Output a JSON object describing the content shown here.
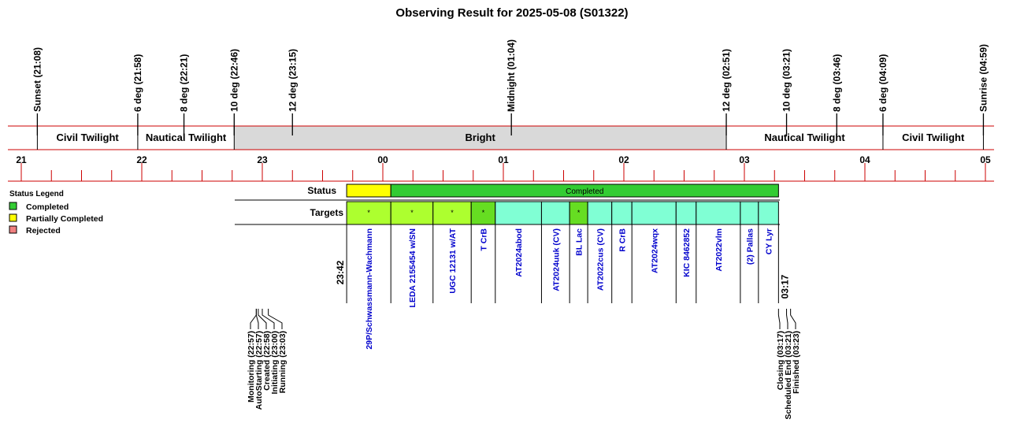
{
  "title": "Observing Result for 2025-05-08 (S01322)",
  "colors": {
    "axis_line": "#cc0000",
    "bright_band": "#d9d9d9",
    "completed": "#33cc33",
    "partial": "#ffff00",
    "rejected": "#f08080",
    "target_mint": "#80ffd4",
    "target_lime": "#adff2f",
    "target_green": "#66dd22",
    "target_label": "#0000cc"
  },
  "events_top": [
    {
      "label": "Sunset (21:08)",
      "time": "21:08"
    },
    {
      "label": "6 deg (21:58)",
      "time": "21:58"
    },
    {
      "label": "8 deg (22:21)",
      "time": "22:21"
    },
    {
      "label": "10 deg (22:46)",
      "time": "22:46"
    },
    {
      "label": "12 deg (23:15)",
      "time": "23:15"
    },
    {
      "label": "Midnight (01:04)",
      "time": "01:04"
    },
    {
      "label": "12 deg (02:51)",
      "time": "02:51"
    },
    {
      "label": "10 deg (03:21)",
      "time": "03:21"
    },
    {
      "label": "8 deg (03:46)",
      "time": "03:46"
    },
    {
      "label": "6 deg (04:09)",
      "time": "04:09"
    },
    {
      "label": "Sunrise (04:59)",
      "time": "04:59"
    }
  ],
  "bands": [
    {
      "label": "Civil Twilight",
      "start": "21:08",
      "end": "21:58",
      "kind": "twilight"
    },
    {
      "label": "Nautical Twilight",
      "start": "21:58",
      "end": "22:46",
      "kind": "twilight"
    },
    {
      "label": "Bright",
      "start": "22:46",
      "end": "02:51",
      "kind": "bright"
    },
    {
      "label": "Nautical Twilight",
      "start": "02:51",
      "end": "04:09",
      "kind": "twilight"
    },
    {
      "label": "Civil Twilight",
      "start": "04:09",
      "end": "04:59",
      "kind": "twilight"
    }
  ],
  "hour_ticks": [
    "21",
    "22",
    "23",
    "00",
    "01",
    "02",
    "03",
    "04",
    "05"
  ],
  "legend": {
    "title": "Status Legend",
    "items": [
      {
        "label": "Completed",
        "color": "#33cc33"
      },
      {
        "label": "Partially Completed",
        "color": "#ffff00"
      },
      {
        "label": "Rejected",
        "color": "#f08080"
      }
    ]
  },
  "rows": {
    "status_label": "Status",
    "targets_label": "Targets"
  },
  "status_segments": [
    {
      "label": "",
      "start": "23:42",
      "end": "00:04",
      "status": "partial"
    },
    {
      "label": "Completed",
      "start": "00:04",
      "end": "03:17",
      "status": "completed"
    }
  ],
  "targets": [
    {
      "name": "29P/Schwassmann-Wachmann",
      "start": "23:42",
      "end": "00:04",
      "mark": "*",
      "fill": "lime"
    },
    {
      "name": "LEDA 2155454 w/SN",
      "start": "00:04",
      "end": "00:25",
      "mark": "*",
      "fill": "lime"
    },
    {
      "name": "UGC 12131 w/AT",
      "start": "00:25",
      "end": "00:44",
      "mark": "*",
      "fill": "lime"
    },
    {
      "name": "T CrB",
      "start": "00:44",
      "end": "00:56",
      "mark": "*",
      "fill": "green"
    },
    {
      "name": "AT2024abod",
      "start": "00:56",
      "end": "01:19",
      "mark": "",
      "fill": "mint"
    },
    {
      "name": "AT2024uuk (CV)",
      "start": "01:19",
      "end": "01:33",
      "mark": "",
      "fill": "mint"
    },
    {
      "name": "BL Lac",
      "start": "01:33",
      "end": "01:42",
      "mark": "*",
      "fill": "green"
    },
    {
      "name": "AT2022cus (CV)",
      "start": "01:42",
      "end": "01:54",
      "mark": "",
      "fill": "mint"
    },
    {
      "name": "R CrB",
      "start": "01:54",
      "end": "02:04",
      "mark": "",
      "fill": "mint"
    },
    {
      "name": "AT2024wqx",
      "start": "02:04",
      "end": "02:26",
      "mark": "",
      "fill": "mint"
    },
    {
      "name": "KIC 8462852",
      "start": "02:26",
      "end": "02:36",
      "mark": "",
      "fill": "mint"
    },
    {
      "name": "AT2022vlm",
      "start": "02:36",
      "end": "02:58",
      "mark": "",
      "fill": "mint"
    },
    {
      "name": "(2) Pallas",
      "start": "02:58",
      "end": "03:07",
      "mark": "",
      "fill": "mint"
    },
    {
      "name": "CY Lyr",
      "start": "03:07",
      "end": "03:17",
      "mark": "",
      "fill": "mint"
    }
  ],
  "start_time_label": "23:42",
  "end_time_label": "03:17",
  "events_bottom_left": [
    {
      "label": "Monitoring (22:57)",
      "time": "22:57"
    },
    {
      "label": "AutoStarting (22:57)",
      "time": "22:57"
    },
    {
      "label": "Created (22:58)",
      "time": "22:58"
    },
    {
      "label": "Initiating (23:00)",
      "time": "23:00"
    },
    {
      "label": "Running (23:03)",
      "time": "23:03"
    }
  ],
  "events_bottom_right": [
    {
      "label": "Closing (03:17)",
      "time": "03:17"
    },
    {
      "label": "Scheduled End (03:21)",
      "time": "03:21"
    },
    {
      "label": "Finished (03:23)",
      "time": "03:23"
    }
  ]
}
